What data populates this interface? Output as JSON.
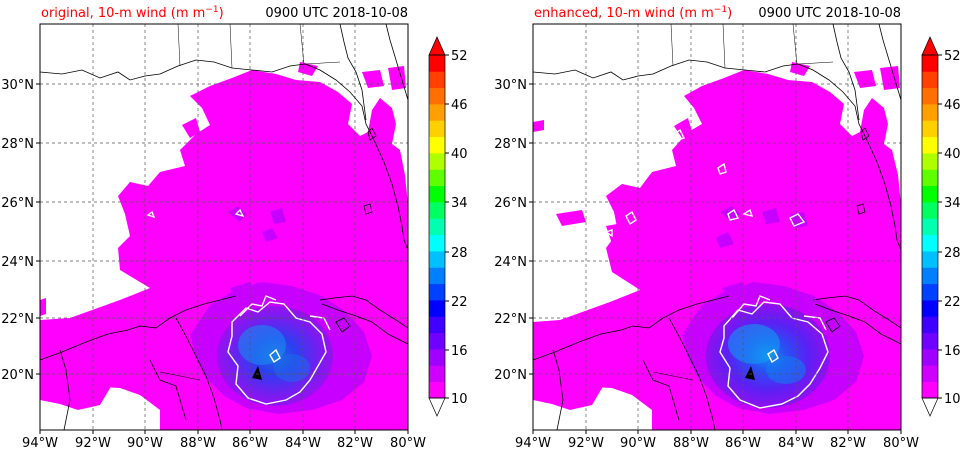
{
  "panels": [
    {
      "id": "original",
      "title_prefix": "original, 10-m wind (m m",
      "title_sup": "−1",
      "title_suffix": ")",
      "time": "0900 UTC 2018-10-08"
    },
    {
      "id": "enhanced",
      "title_prefix": "enhanced, 10-m wind (m m",
      "title_sup": "−1",
      "title_suffix": ")",
      "time": "0900 UTC 2018-10-08"
    }
  ],
  "title_color": "#ff0000",
  "map": {
    "lon_min": -94,
    "lon_max": -80,
    "lat_min": 18.2,
    "lat_max": 32.1,
    "lon_ticks": [
      -94,
      -92,
      -90,
      -88,
      -86,
      -84,
      -82,
      -80
    ],
    "lon_labels": [
      "94°W",
      "92°W",
      "90°W",
      "88°W",
      "86°W",
      "84°W",
      "82°W",
      "80°W"
    ],
    "lat_ticks": [
      20,
      22,
      24,
      26,
      28,
      30
    ],
    "lat_labels": [
      "20°N",
      "22°N",
      "24°N",
      "26°N",
      "28°N",
      "30°N"
    ],
    "grid": true,
    "contour_color": "#ffffff"
  },
  "colorbar": {
    "levels": [
      10,
      12,
      14,
      16,
      18,
      20,
      22,
      24,
      26,
      28,
      30,
      32,
      34,
      36,
      38,
      40,
      42,
      44,
      46,
      48,
      50,
      52
    ],
    "tick_values": [
      10,
      16,
      22,
      28,
      34,
      40,
      46,
      52
    ],
    "tick_labels": [
      "10",
      "16",
      "22",
      "28",
      "34",
      "40",
      "46",
      "52"
    ],
    "colors": [
      "#ff00ff",
      "#d000ff",
      "#a000ff",
      "#7000ff",
      "#4000ff",
      "#0000ff",
      "#0040ff",
      "#0080ff",
      "#00c0ff",
      "#00ffff",
      "#00ffb0",
      "#00ff60",
      "#00ff00",
      "#60ff00",
      "#b0ff00",
      "#ffff00",
      "#ffd000",
      "#ffa000",
      "#ff7000",
      "#ff4000",
      "#ff0000"
    ],
    "extend": "both"
  }
}
